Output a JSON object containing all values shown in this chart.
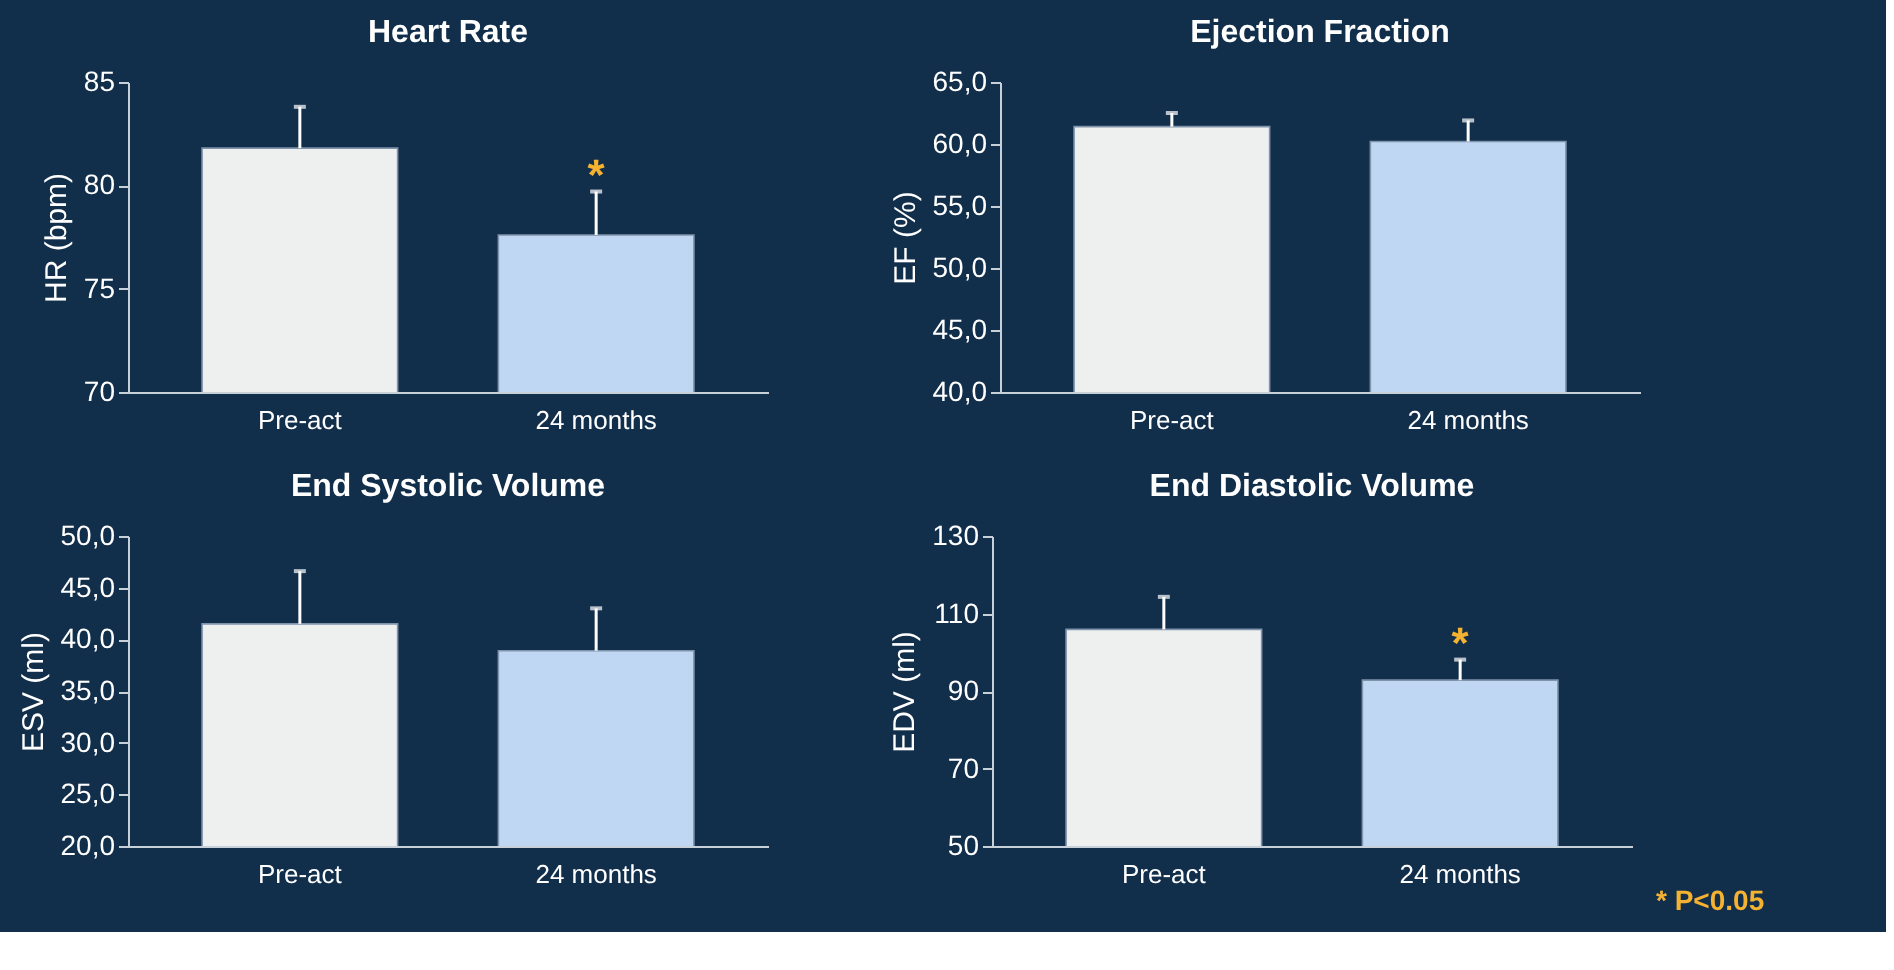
{
  "chart_data": [
    {
      "type": "bar",
      "title": "Heart Rate",
      "ylabel": "HR  (bpm)",
      "categories": [
        "Pre-act",
        "24 months"
      ],
      "values": [
        81.8,
        77.6
      ],
      "colors": [
        "#eeefef",
        "#c0d7f4"
      ],
      "errors": [
        2.0,
        2.1
      ],
      "ylim": [
        70,
        85
      ],
      "yticks": [
        70,
        75,
        80,
        85
      ],
      "grid": false,
      "annotations": [
        "*"
      ]
    },
    {
      "type": "bar",
      "title": "Ejection Fraction",
      "ylabel": "EF (%)",
      "categories": [
        "Pre-act",
        "24 months"
      ],
      "values": [
        61.4,
        60.2
      ],
      "colors": [
        "#eeefef",
        "#c0d7f4"
      ],
      "errors": [
        1.1,
        1.7
      ],
      "ylim": [
        40,
        65
      ],
      "yticks": [
        {
          "value": 40,
          "label": "40,0"
        },
        {
          "value": 45,
          "label": "45,0"
        },
        {
          "value": 50,
          "label": "50,0"
        },
        {
          "value": 55,
          "label": "55,0"
        },
        {
          "value": 60,
          "label": "60,0"
        },
        {
          "value": 65,
          "label": "65,0"
        }
      ],
      "grid": false
    },
    {
      "type": "bar",
      "title": "End Systolic Volume",
      "ylabel": "ESV (ml)",
      "categories": [
        "Pre-act",
        "24 months"
      ],
      "values": [
        41.5,
        38.9
      ],
      "colors": [
        "#eeefef",
        "#c0d7f4"
      ],
      "errors": [
        5.1,
        4.1
      ],
      "ylim": [
        20,
        50
      ],
      "yticks": [
        {
          "value": 20,
          "label": "20,0"
        },
        {
          "value": 25,
          "label": "25,0"
        },
        {
          "value": 30,
          "label": "30,0"
        },
        {
          "value": 35,
          "label": "35,0"
        },
        {
          "value": 40,
          "label": "40,0"
        },
        {
          "value": 45,
          "label": "45,0"
        },
        {
          "value": 50,
          "label": "50,0"
        }
      ],
      "grid": false
    },
    {
      "type": "bar",
      "title": "End Diastolic Volume",
      "ylabel": "EDV (ml)",
      "categories": [
        "Pre-act",
        "24 months"
      ],
      "values": [
        105.9,
        92.8
      ],
      "colors": [
        "#eeefef",
        "#c0d7f4"
      ],
      "errors": [
        8.4,
        5.3
      ],
      "ylim": [
        50,
        130
      ],
      "yticks": [
        50,
        70,
        90,
        110,
        130
      ],
      "grid": false,
      "annotations": [
        "*",
        "* P<0.05"
      ]
    }
  ]
}
